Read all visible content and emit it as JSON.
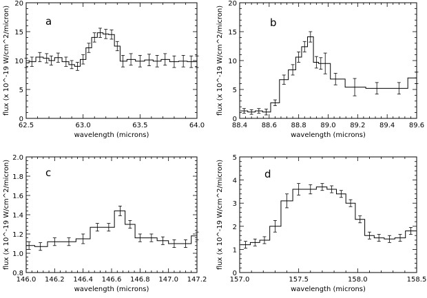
{
  "chart_data": [
    {
      "type": "line",
      "panel_label": "a",
      "xlabel": "wavelength (microns)",
      "ylabel": "flux (x 10^-19 W/cm^2/micron)",
      "xlim": [
        62.5,
        64.0
      ],
      "ylim": [
        0,
        20
      ],
      "xticks": [
        62.5,
        63.0,
        63.5,
        64.0
      ],
      "xtick_labels": [
        "62.5",
        "63.0",
        "63.5",
        "64.0"
      ],
      "yticks": [
        0,
        5,
        10,
        15,
        20
      ],
      "ytick_labels": [
        "0",
        "5",
        "10",
        "15",
        "20"
      ],
      "series": [
        {
          "style": "step",
          "x": [
            62.5,
            62.55,
            62.62,
            62.68,
            62.72,
            62.78,
            62.85,
            62.9,
            62.95,
            63.0,
            63.05,
            63.1,
            63.15,
            63.2,
            63.25,
            63.3,
            63.35,
            63.42,
            63.5,
            63.58,
            63.65,
            63.72,
            63.8,
            63.88,
            63.95,
            64.0
          ],
          "y": [
            9.6,
            9.8,
            10.6,
            10.4,
            10.0,
            10.5,
            9.8,
            9.3,
            9.0,
            10.2,
            12.2,
            14.0,
            14.8,
            14.6,
            14.5,
            12.5,
            9.9,
            10.2,
            9.9,
            10.1,
            9.9,
            10.2,
            9.8,
            9.9,
            9.8,
            9.8
          ],
          "yerr": [
            0.8,
            0.8,
            0.8,
            0.8,
            0.8,
            0.8,
            0.8,
            0.7,
            0.7,
            0.8,
            0.8,
            0.8,
            0.8,
            0.8,
            0.8,
            0.8,
            1.0,
            1.0,
            1.0,
            1.0,
            1.0,
            1.0,
            1.0,
            1.0,
            1.0,
            1.0
          ]
        }
      ]
    },
    {
      "type": "line",
      "panel_label": "b",
      "xlabel": "wavelength (microns)",
      "ylabel": "flux (x 10^-19 W/cm^2/micron)",
      "xlim": [
        88.4,
        89.6
      ],
      "ylim": [
        0,
        20
      ],
      "xticks": [
        88.4,
        88.6,
        88.8,
        89.0,
        89.2,
        89.4,
        89.6
      ],
      "xtick_labels": [
        "88.4",
        "88.6",
        "88.8",
        "89.0",
        "89.2",
        "89.4",
        "89.6"
      ],
      "yticks": [
        0,
        5,
        10,
        15,
        20
      ],
      "ytick_labels": [
        "0",
        "5",
        "10",
        "15",
        "20"
      ],
      "series": [
        {
          "style": "step",
          "x": [
            88.43,
            88.48,
            88.53,
            88.58,
            88.64,
            88.7,
            88.76,
            88.8,
            88.84,
            88.88,
            88.92,
            88.95,
            88.98,
            89.05,
            89.18,
            89.33,
            89.48,
            89.6
          ],
          "y": [
            1.3,
            1.1,
            1.3,
            1.1,
            2.7,
            6.7,
            8.4,
            10.6,
            12.4,
            14.1,
            9.7,
            9.5,
            9.5,
            6.8,
            5.4,
            5.2,
            5.2,
            7.0
          ],
          "yerr": [
            0.4,
            0.4,
            0.4,
            0.5,
            0.5,
            0.8,
            0.9,
            0.9,
            0.9,
            0.9,
            1.0,
            1.0,
            1.8,
            1.0,
            1.5,
            1.0,
            1.0,
            1.0
          ]
        }
      ]
    },
    {
      "type": "line",
      "panel_label": "c",
      "xlabel": "wavelength (microns)",
      "ylabel": "flux (x 10^-19 W/cm^2/micron)",
      "xlim": [
        146.0,
        147.2
      ],
      "ylim": [
        0.8,
        2.0
      ],
      "xticks": [
        146.0,
        146.2,
        146.4,
        146.6,
        146.8,
        147.0,
        147.2
      ],
      "xtick_labels": [
        "146.0",
        "146.2",
        "146.4",
        "146.6",
        "146.8",
        "147.0",
        "147.2"
      ],
      "yticks": [
        0.8,
        1.0,
        1.2,
        1.4,
        1.6,
        1.8,
        2.0
      ],
      "ytick_labels": [
        "0.8",
        "1.0",
        "1.2",
        "1.4",
        "1.6",
        "1.8",
        "2.0"
      ],
      "series": [
        {
          "style": "step",
          "x": [
            146.02,
            146.1,
            146.2,
            146.3,
            146.4,
            146.5,
            146.58,
            146.66,
            146.73,
            146.8,
            146.88,
            146.96,
            147.04,
            147.12,
            147.2
          ],
          "y": [
            1.08,
            1.07,
            1.12,
            1.12,
            1.15,
            1.27,
            1.27,
            1.44,
            1.3,
            1.16,
            1.16,
            1.13,
            1.1,
            1.1,
            1.18
          ],
          "yerr": [
            0.04,
            0.04,
            0.04,
            0.04,
            0.05,
            0.04,
            0.04,
            0.05,
            0.04,
            0.04,
            0.04,
            0.04,
            0.04,
            0.04,
            0.04
          ]
        }
      ]
    },
    {
      "type": "line",
      "panel_label": "d",
      "xlabel": "wavelength (microns)",
      "ylabel": "flux (x 10^-19 W/cm^2/micron)",
      "xlim": [
        157.0,
        158.5
      ],
      "ylim": [
        0,
        5
      ],
      "xticks": [
        157.0,
        157.5,
        158.0,
        158.5
      ],
      "xtick_labels": [
        "157.0",
        "157.5",
        "158.0",
        "158.5"
      ],
      "yticks": [
        0,
        1,
        2,
        3,
        4,
        5
      ],
      "ytick_labels": [
        "0",
        "1",
        "2",
        "3",
        "4",
        "5"
      ],
      "series": [
        {
          "style": "step",
          "x": [
            157.05,
            157.13,
            157.21,
            157.3,
            157.4,
            157.5,
            157.6,
            157.7,
            157.78,
            157.86,
            157.94,
            158.02,
            158.1,
            158.18,
            158.27,
            158.36,
            158.45
          ],
          "y": [
            1.2,
            1.3,
            1.4,
            2.0,
            3.1,
            3.6,
            3.6,
            3.7,
            3.6,
            3.4,
            3.0,
            2.3,
            1.6,
            1.5,
            1.45,
            1.5,
            1.8
          ],
          "yerr": [
            0.15,
            0.15,
            0.15,
            0.25,
            0.3,
            0.25,
            0.2,
            0.15,
            0.15,
            0.15,
            0.15,
            0.15,
            0.15,
            0.15,
            0.15,
            0.15,
            0.15
          ]
        }
      ]
    }
  ]
}
